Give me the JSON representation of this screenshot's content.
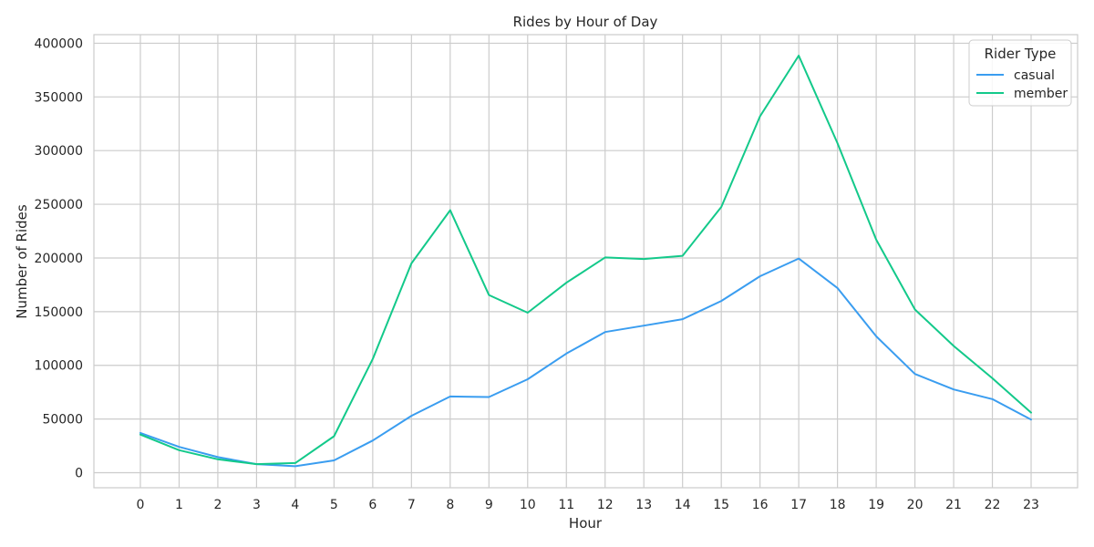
{
  "chart_data": {
    "type": "line",
    "title": "Rides by Hour of Day",
    "xlabel": "Hour",
    "ylabel": "Number of Rides",
    "x": [
      0,
      1,
      2,
      3,
      4,
      5,
      6,
      7,
      8,
      9,
      10,
      11,
      12,
      13,
      14,
      15,
      16,
      17,
      18,
      19,
      20,
      21,
      22,
      23
    ],
    "xlim": [
      -1.2,
      24.2
    ],
    "ylim": [
      -14000,
      408000
    ],
    "yticks": [
      0,
      50000,
      100000,
      150000,
      200000,
      250000,
      300000,
      350000,
      400000
    ],
    "grid": true,
    "legend": {
      "title": "Rider Type",
      "placement": "top-right"
    },
    "series": [
      {
        "name": "casual",
        "color": "#3a9df0",
        "values": [
          37000,
          24000,
          14500,
          8000,
          6000,
          11500,
          30000,
          53000,
          71000,
          70500,
          87000,
          111000,
          131000,
          137000,
          143000,
          160000,
          183000,
          199500,
          172000,
          127000,
          92000,
          77500,
          68500,
          49500
        ]
      },
      {
        "name": "member",
        "color": "#13c98a",
        "values": [
          35500,
          21000,
          12500,
          8000,
          9000,
          34000,
          106000,
          195000,
          244500,
          165500,
          149000,
          177000,
          200500,
          199000,
          202000,
          247500,
          332000,
          388500,
          307000,
          217000,
          152000,
          118000,
          88000,
          56000
        ]
      }
    ]
  }
}
